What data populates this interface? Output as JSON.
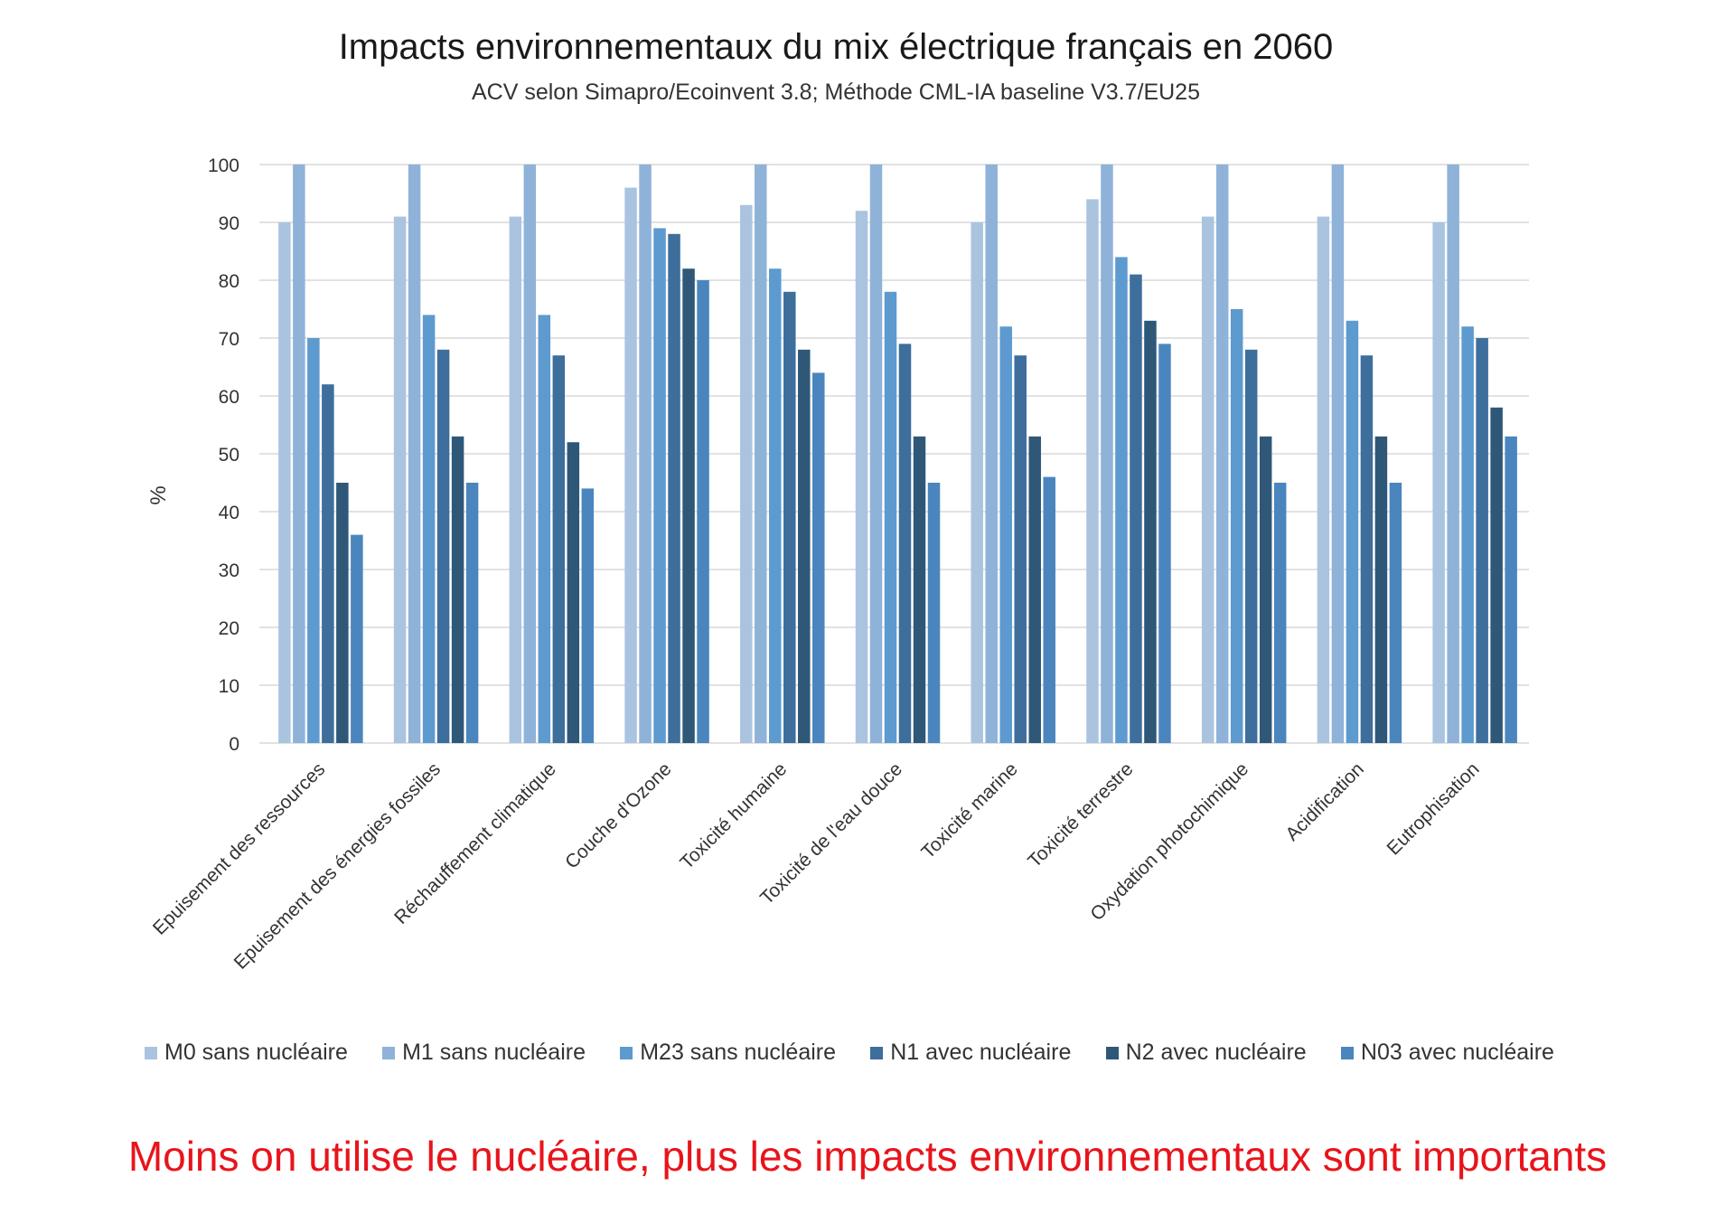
{
  "chart_data": {
    "type": "bar",
    "title": "Impacts environnementaux du mix électrique français en 2060",
    "subtitle": "ACV selon Simapro/Ecoinvent 3.8; Méthode CML-IA baseline V3.7/EU25",
    "ylabel": "%",
    "xlabel": "",
    "ylim": [
      0,
      100
    ],
    "yticks": [
      0,
      10,
      20,
      30,
      40,
      50,
      60,
      70,
      80,
      90,
      100
    ],
    "grid": true,
    "legend_position": "bottom",
    "categories": [
      "Epuisement des ressources",
      "Epuisement des énergies fossiles",
      "Réchauffement climatique",
      "Couche d'Ozone",
      "Toxicité humaine",
      "Toxicité de l'eau douce",
      "Toxicité marine",
      "Toxicité terrestre",
      "Oxydation photochimique",
      "Acidification",
      "Eutrophisation"
    ],
    "series": [
      {
        "name": "M0 sans nucléaire",
        "color": "#aac4e0",
        "values": [
          90,
          91,
          91,
          96,
          93,
          92,
          90,
          94,
          91,
          91,
          90
        ]
      },
      {
        "name": "M1 sans nucléaire",
        "color": "#8fb2d9",
        "values": [
          100,
          100,
          100,
          100,
          100,
          100,
          100,
          100,
          100,
          100,
          100
        ]
      },
      {
        "name": "M23 sans nucléaire",
        "color": "#5d9acf",
        "values": [
          70,
          74,
          74,
          89,
          82,
          78,
          72,
          84,
          75,
          73,
          72
        ]
      },
      {
        "name": "N1 avec nucléaire",
        "color": "#3d6e9c",
        "values": [
          62,
          68,
          67,
          88,
          78,
          69,
          67,
          81,
          68,
          67,
          70
        ]
      },
      {
        "name": "N2 avec nucléaire",
        "color": "#2f5878",
        "values": [
          45,
          53,
          52,
          82,
          68,
          53,
          53,
          73,
          53,
          53,
          58
        ]
      },
      {
        "name": "N03 avec nucléaire",
        "color": "#4a86bd",
        "values": [
          36,
          45,
          44,
          80,
          64,
          45,
          46,
          69,
          45,
          45,
          53
        ]
      }
    ]
  },
  "footer_note": "Moins on utilise le nucléaire, plus les impacts environnementaux  sont importants"
}
